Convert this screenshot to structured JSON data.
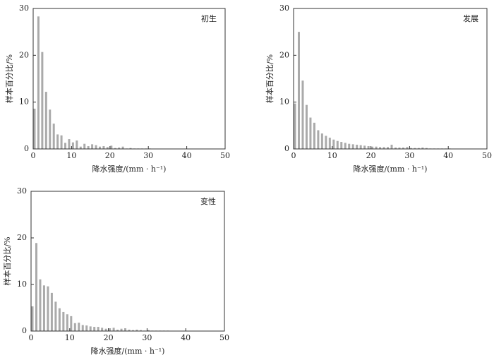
{
  "chart_data": [
    {
      "type": "bar",
      "annotation": "初生",
      "xlabel": "降水强度/(mm · h⁻¹)",
      "ylabel": "样本百分比/%",
      "color": "#aaaaaa",
      "x": [
        0,
        1,
        2,
        3,
        4,
        5,
        6,
        7,
        8,
        9,
        10,
        11,
        12,
        13,
        14,
        15,
        16,
        17,
        18,
        19,
        20,
        21,
        22,
        23,
        24,
        25,
        26,
        27,
        28,
        29,
        30
      ],
      "values": [
        8.6,
        28.3,
        20.7,
        12.2,
        8.4,
        5.4,
        3.1,
        2.9,
        1.3,
        2.1,
        1.4,
        1.8,
        0.5,
        1.1,
        0.6,
        1.0,
        0.8,
        0.5,
        0.6,
        0.4,
        0.7,
        0.2,
        0.3,
        0.5,
        0.1,
        0.2,
        0.1,
        0.1,
        0.1,
        0.1,
        0.1
      ],
      "xlim": [
        0,
        50
      ],
      "ylim": [
        0,
        30
      ],
      "xticks": [
        0,
        10,
        20,
        30,
        40,
        50
      ],
      "yticks": [
        0,
        10,
        20,
        30
      ]
    },
    {
      "type": "bar",
      "annotation": "发展",
      "xlabel": "降水强度/(mm · h⁻¹)",
      "ylabel": "样本百分比/%",
      "color": "#aaaaaa",
      "x": [
        0,
        1,
        2,
        3,
        4,
        5,
        6,
        7,
        8,
        9,
        10,
        11,
        12,
        13,
        14,
        15,
        16,
        17,
        18,
        19,
        20,
        21,
        22,
        23,
        24,
        25,
        26,
        27,
        28,
        29,
        30,
        31,
        32,
        33,
        34,
        35,
        36,
        37,
        38,
        39,
        40
      ],
      "values": [
        9.7,
        25.0,
        14.6,
        9.4,
        6.7,
        5.6,
        4.0,
        3.3,
        2.8,
        2.4,
        2.0,
        1.7,
        1.5,
        1.3,
        1.1,
        1.0,
        0.9,
        0.8,
        0.7,
        0.6,
        0.5,
        0.5,
        0.4,
        0.4,
        0.4,
        0.9,
        0.3,
        0.3,
        0.3,
        0.4,
        0.2,
        0.2,
        0.2,
        0.3,
        0.2,
        0.1,
        0.1,
        0.1,
        0.1,
        0.1,
        0.1
      ],
      "xlim": [
        0,
        50
      ],
      "ylim": [
        0,
        30
      ],
      "xticks": [
        0,
        10,
        20,
        30,
        40,
        50
      ],
      "yticks": [
        0,
        10,
        20,
        30
      ]
    },
    {
      "type": "bar",
      "annotation": "变性",
      "xlabel": "降水强度/(mm · h⁻¹)",
      "ylabel": "样本百分比/%",
      "color": "#aaaaaa",
      "x": [
        0,
        1,
        2,
        3,
        4,
        5,
        6,
        7,
        8,
        9,
        10,
        11,
        12,
        13,
        14,
        15,
        16,
        17,
        18,
        19,
        20,
        21,
        22,
        23,
        24,
        25,
        26,
        27,
        28,
        29,
        30,
        31,
        32,
        33,
        34,
        35
      ],
      "values": [
        5.3,
        18.9,
        11.1,
        9.8,
        9.6,
        8.2,
        6.3,
        4.9,
        4.1,
        3.6,
        3.2,
        1.7,
        1.8,
        1.3,
        1.2,
        1.0,
        0.9,
        0.9,
        0.7,
        0.5,
        0.6,
        0.7,
        0.3,
        0.5,
        0.6,
        0.3,
        0.2,
        0.3,
        0.2,
        0.1,
        0.2,
        0.1,
        0.1,
        0.1,
        0.1,
        0.1
      ],
      "xlim": [
        0,
        50
      ],
      "ylim": [
        0,
        30
      ],
      "xticks": [
        0,
        10,
        20,
        30,
        40,
        50
      ],
      "yticks": [
        0,
        10,
        20,
        30
      ]
    }
  ]
}
